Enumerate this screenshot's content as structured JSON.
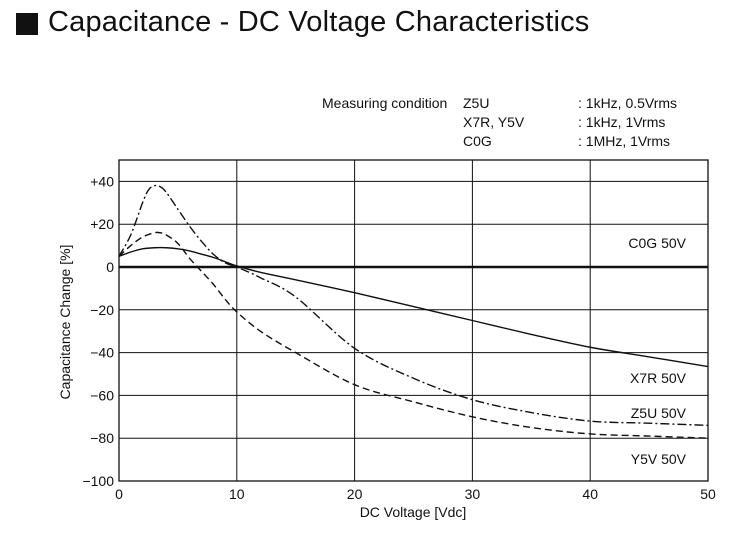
{
  "heading": {
    "icon": "black-square-icon",
    "text": "Capacitance - DC Voltage Characteristics"
  },
  "measuring_condition": {
    "label": "Measuring condition",
    "rows": [
      {
        "type": "Z5U",
        "value": ": 1kHz, 0.5Vrms"
      },
      {
        "type": "X7R, Y5V",
        "value": ": 1kHz, 1Vrms"
      },
      {
        "type": "C0G",
        "value": ": 1MHz, 1Vrms"
      }
    ]
  },
  "chart_data": {
    "type": "line",
    "title": "",
    "xlabel": "DC Voltage [Vdc]",
    "ylabel": "Capacitance Change [%]",
    "xlim": [
      0,
      50
    ],
    "ylim": [
      -100,
      50
    ],
    "xticks": [
      0,
      10,
      20,
      30,
      40,
      50
    ],
    "xtick_labels": [
      "0",
      "10",
      "20",
      "30",
      "40",
      "50"
    ],
    "yticks": [
      40,
      20,
      0,
      -20,
      -40,
      -60,
      -80,
      -100
    ],
    "ytick_labels": [
      "+40",
      "+20",
      "0",
      "−20",
      "−40",
      "−60",
      "−80",
      "−100"
    ],
    "grid": true,
    "series": [
      {
        "name": "C0G 50V",
        "style": "solid-bold",
        "x": [
          0,
          10,
          20,
          30,
          40,
          50
        ],
        "y": [
          0,
          0,
          0,
          0,
          0,
          0
        ]
      },
      {
        "name": "X7R 50V",
        "style": "solid",
        "x": [
          0,
          1,
          2,
          3,
          4,
          5,
          6,
          7,
          8,
          9,
          10,
          12,
          15,
          20,
          25,
          30,
          35,
          40,
          45,
          50
        ],
        "y": [
          5,
          7,
          8.5,
          9,
          9,
          8.5,
          7.5,
          6,
          4.5,
          2.5,
          0.5,
          -2.5,
          -6,
          -12,
          -18.5,
          -25,
          -31.5,
          -37.5,
          -42,
          -46.5
        ]
      },
      {
        "name": "Z5U 50V",
        "style": "dash-dot",
        "x": [
          0,
          1,
          2,
          2.5,
          3,
          3.5,
          4,
          5,
          6,
          7,
          8,
          9,
          10,
          12,
          15,
          20,
          25,
          30,
          35,
          40,
          45,
          50
        ],
        "y": [
          5,
          15,
          30,
          36,
          38,
          37.5,
          35,
          27,
          19,
          12,
          6,
          2,
          0,
          -5,
          -14,
          -38,
          -52,
          -62,
          -68,
          -72,
          -73,
          -74
        ]
      },
      {
        "name": "Y5V 50V",
        "style": "dashed",
        "x": [
          0,
          1,
          2,
          3,
          3.5,
          4,
          5,
          6,
          7,
          8,
          9,
          10,
          12,
          15,
          20,
          25,
          30,
          35,
          40,
          45,
          50
        ],
        "y": [
          5,
          10,
          14,
          16,
          16,
          15,
          11,
          4,
          -2,
          -8,
          -15,
          -21,
          -30,
          -40,
          -55,
          -63,
          -70,
          -75,
          -78,
          -79,
          -80
        ]
      }
    ],
    "legend_labels": [
      "C0G 50V",
      "X7R 50V",
      "Z5U 50V",
      "Y5V 50V"
    ]
  }
}
